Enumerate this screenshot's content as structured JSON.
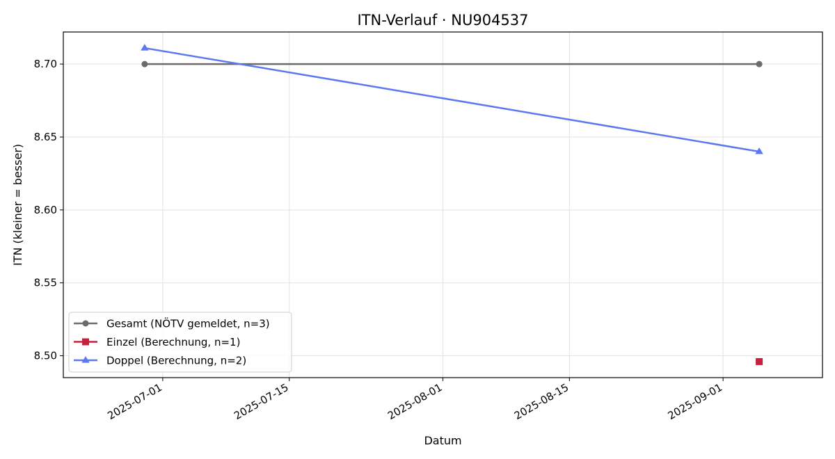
{
  "chart_data": {
    "type": "line",
    "title": "ITN-Verlauf · NU904537",
    "xlabel": "Datum",
    "ylabel": "ITN  (kleiner = besser)",
    "x_type": "date",
    "xlim": [
      "2025-06-20",
      "2025-09-12"
    ],
    "ylim": [
      8.485,
      8.722
    ],
    "x_ticks": [
      "2025-07-01",
      "2025-07-15",
      "2025-08-01",
      "2025-08-15",
      "2025-09-01"
    ],
    "y_ticks": [
      8.5,
      8.55,
      8.6,
      8.65,
      8.7
    ],
    "y_tick_labels": [
      "8.50",
      "8.55",
      "8.60",
      "8.65",
      "8.70"
    ],
    "grid": true,
    "legend_position": "lower-left",
    "series": [
      {
        "name": "Gesamt (NÖTV gemeldet, n=3)",
        "color": "#6b6b6b",
        "marker": "circle",
        "points": [
          {
            "x": "2025-06-29",
            "y": 8.7
          },
          {
            "x": "2025-09-05",
            "y": 8.7
          }
        ]
      },
      {
        "name": "Einzel (Berechnung, n=1)",
        "color": "#c8203c",
        "marker": "square",
        "points": [
          {
            "x": "2025-09-05",
            "y": 8.496
          }
        ]
      },
      {
        "name": "Doppel (Berechnung, n=2)",
        "color": "#5b78ee",
        "marker": "triangle",
        "points": [
          {
            "x": "2025-06-29",
            "y": 8.711
          },
          {
            "x": "2025-09-05",
            "y": 8.64
          }
        ]
      }
    ]
  }
}
